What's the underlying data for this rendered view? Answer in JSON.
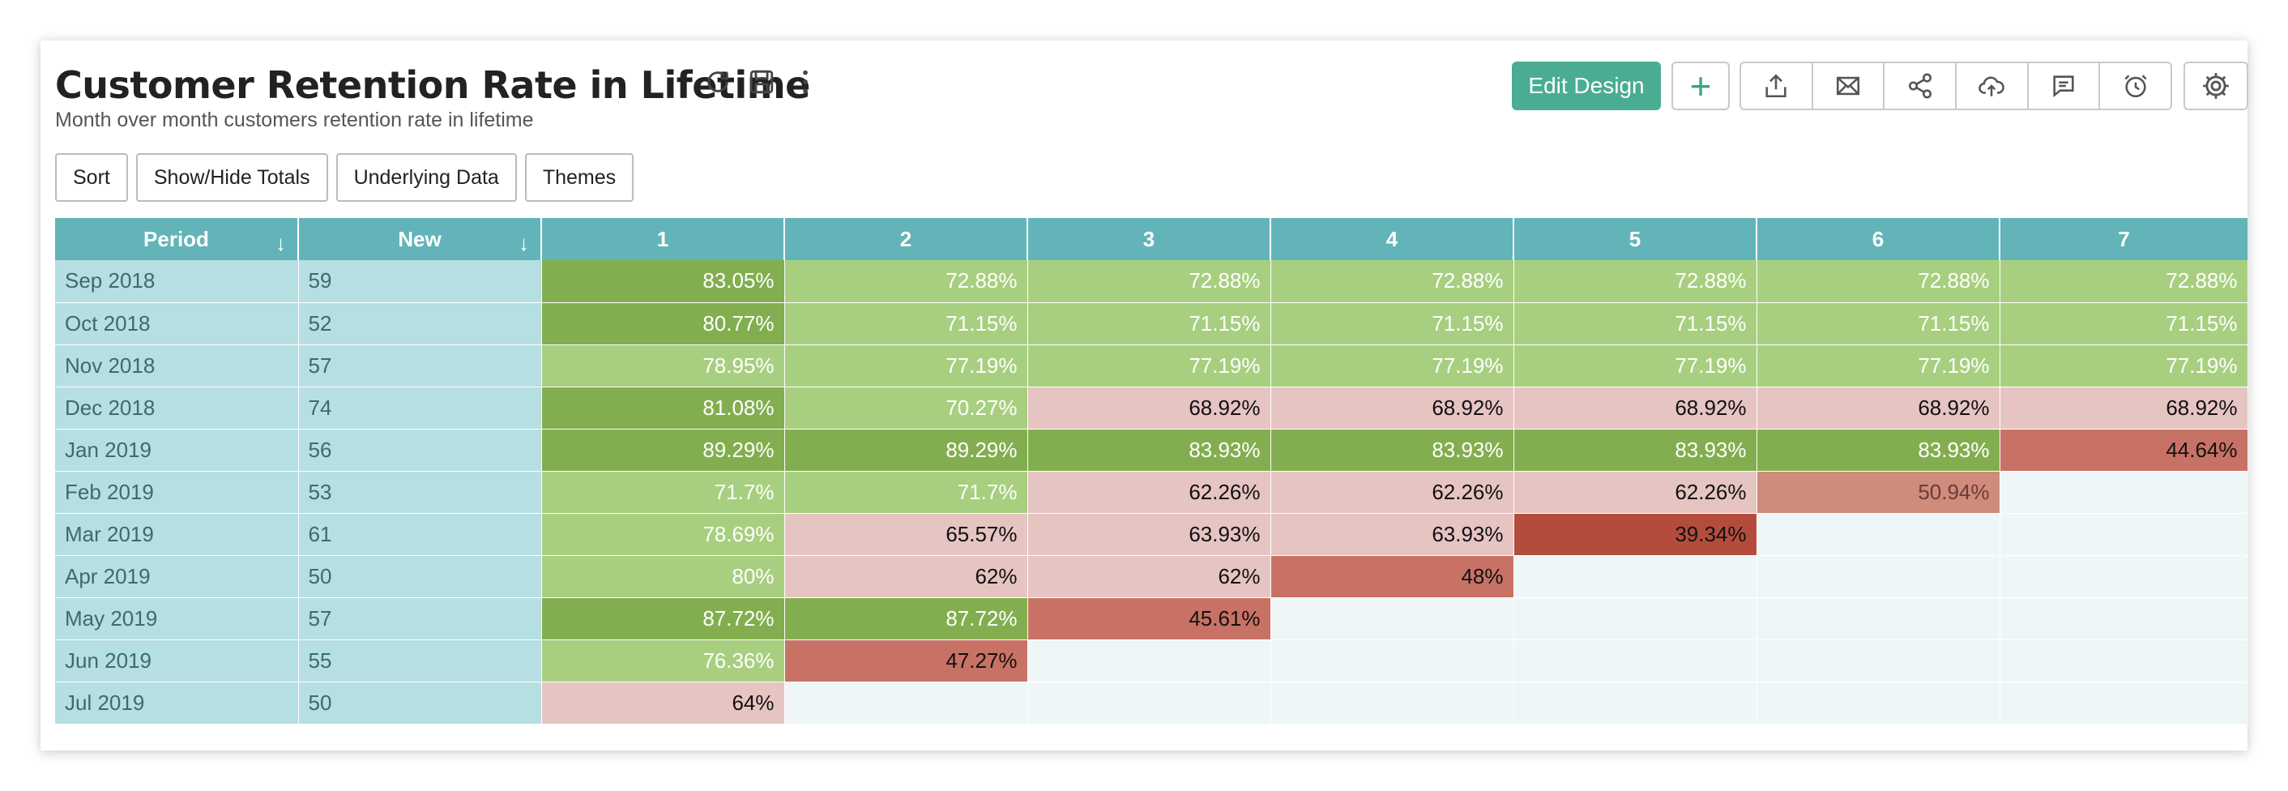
{
  "header": {
    "title": "Customer Retention Rate in Lifetime",
    "subtitle": "Month over month customers retention rate in lifetime",
    "title_icons": [
      "refresh-icon",
      "save-icon",
      "more-vertical-icon"
    ]
  },
  "actions": {
    "edit_design_label": "Edit Design",
    "add_icon": "plus-icon",
    "icon_group": [
      "export-icon",
      "email-icon",
      "share-icon",
      "cloud-upload-icon",
      "comment-icon",
      "alarm-icon"
    ],
    "settings_icon": "gear-icon"
  },
  "toolbar": {
    "sort": "Sort",
    "show_hide_totals": "Show/Hide Totals",
    "underlying_data": "Underlying Data",
    "themes": "Themes"
  },
  "colors": {
    "header": "#63b4b8",
    "label_cell": "#b5dfe2",
    "empty_cell": "#eef6f7",
    "dark_green": "#83ae50",
    "light_green": "#a8cf80",
    "light_pink": "#e6c4c2",
    "medium_red": "#c87265",
    "dark_red": "#b44c3d",
    "accent": "#4aac93"
  },
  "table": {
    "columns": [
      "Period",
      "New",
      "1",
      "2",
      "3",
      "4",
      "5",
      "6",
      "7"
    ],
    "rows": [
      {
        "period": "Sep 2018",
        "new": "59",
        "cells": [
          {
            "v": "83.05%",
            "c": "dg"
          },
          {
            "v": "72.88%",
            "c": "lg"
          },
          {
            "v": "72.88%",
            "c": "lg"
          },
          {
            "v": "72.88%",
            "c": "lg"
          },
          {
            "v": "72.88%",
            "c": "lg"
          },
          {
            "v": "72.88%",
            "c": "lg"
          },
          {
            "v": "72.88%",
            "c": "lg"
          }
        ]
      },
      {
        "period": "Oct 2018",
        "new": "52",
        "cells": [
          {
            "v": "80.77%",
            "c": "dg"
          },
          {
            "v": "71.15%",
            "c": "lg"
          },
          {
            "v": "71.15%",
            "c": "lg"
          },
          {
            "v": "71.15%",
            "c": "lg"
          },
          {
            "v": "71.15%",
            "c": "lg"
          },
          {
            "v": "71.15%",
            "c": "lg"
          },
          {
            "v": "71.15%",
            "c": "lg"
          }
        ]
      },
      {
        "period": "Nov 2018",
        "new": "57",
        "cells": [
          {
            "v": "78.95%",
            "c": "lg"
          },
          {
            "v": "77.19%",
            "c": "lg"
          },
          {
            "v": "77.19%",
            "c": "lg"
          },
          {
            "v": "77.19%",
            "c": "lg"
          },
          {
            "v": "77.19%",
            "c": "lg"
          },
          {
            "v": "77.19%",
            "c": "lg"
          },
          {
            "v": "77.19%",
            "c": "lg"
          }
        ]
      },
      {
        "period": "Dec 2018",
        "new": "74",
        "cells": [
          {
            "v": "81.08%",
            "c": "dg"
          },
          {
            "v": "70.27%",
            "c": "lg"
          },
          {
            "v": "68.92%",
            "c": "pk"
          },
          {
            "v": "68.92%",
            "c": "pk"
          },
          {
            "v": "68.92%",
            "c": "pk"
          },
          {
            "v": "68.92%",
            "c": "pk"
          },
          {
            "v": "68.92%",
            "c": "pk"
          }
        ]
      },
      {
        "period": "Jan 2019",
        "new": "56",
        "cells": [
          {
            "v": "89.29%",
            "c": "dg"
          },
          {
            "v": "89.29%",
            "c": "dg"
          },
          {
            "v": "83.93%",
            "c": "dg"
          },
          {
            "v": "83.93%",
            "c": "dg"
          },
          {
            "v": "83.93%",
            "c": "dg"
          },
          {
            "v": "83.93%",
            "c": "dg"
          },
          {
            "v": "44.64%",
            "c": "md"
          }
        ]
      },
      {
        "period": "Feb 2019",
        "new": "53",
        "cells": [
          {
            "v": "71.7%",
            "c": "lg"
          },
          {
            "v": "71.7%",
            "c": "lg"
          },
          {
            "v": "62.26%",
            "c": "pk"
          },
          {
            "v": "62.26%",
            "c": "pk"
          },
          {
            "v": "62.26%",
            "c": "pk"
          },
          {
            "v": "50.94%",
            "c": "sm"
          },
          {
            "v": "",
            "c": "empty"
          }
        ]
      },
      {
        "period": "Mar 2019",
        "new": "61",
        "cells": [
          {
            "v": "78.69%",
            "c": "lg"
          },
          {
            "v": "65.57%",
            "c": "pk"
          },
          {
            "v": "63.93%",
            "c": "pk"
          },
          {
            "v": "63.93%",
            "c": "pk"
          },
          {
            "v": "39.34%",
            "c": "rd"
          },
          {
            "v": "",
            "c": "empty"
          },
          {
            "v": "",
            "c": "empty"
          }
        ]
      },
      {
        "period": "Apr 2019",
        "new": "50",
        "cells": [
          {
            "v": "80%",
            "c": "lg"
          },
          {
            "v": "62%",
            "c": "pk"
          },
          {
            "v": "62%",
            "c": "pk"
          },
          {
            "v": "48%",
            "c": "md"
          },
          {
            "v": "",
            "c": "empty"
          },
          {
            "v": "",
            "c": "empty"
          },
          {
            "v": "",
            "c": "empty"
          }
        ]
      },
      {
        "period": "May 2019",
        "new": "57",
        "cells": [
          {
            "v": "87.72%",
            "c": "dg"
          },
          {
            "v": "87.72%",
            "c": "dg"
          },
          {
            "v": "45.61%",
            "c": "md"
          },
          {
            "v": "",
            "c": "empty"
          },
          {
            "v": "",
            "c": "empty"
          },
          {
            "v": "",
            "c": "empty"
          },
          {
            "v": "",
            "c": "empty"
          }
        ]
      },
      {
        "period": "Jun 2019",
        "new": "55",
        "cells": [
          {
            "v": "76.36%",
            "c": "lg"
          },
          {
            "v": "47.27%",
            "c": "md"
          },
          {
            "v": "",
            "c": "empty"
          },
          {
            "v": "",
            "c": "empty"
          },
          {
            "v": "",
            "c": "empty"
          },
          {
            "v": "",
            "c": "empty"
          },
          {
            "v": "",
            "c": "empty"
          }
        ]
      },
      {
        "period": "Jul 2019",
        "new": "50",
        "cells": [
          {
            "v": "64%",
            "c": "pk"
          },
          {
            "v": "",
            "c": "empty"
          },
          {
            "v": "",
            "c": "empty"
          },
          {
            "v": "",
            "c": "empty"
          },
          {
            "v": "",
            "c": "empty"
          },
          {
            "v": "",
            "c": "empty"
          },
          {
            "v": "",
            "c": "empty"
          }
        ]
      }
    ]
  }
}
